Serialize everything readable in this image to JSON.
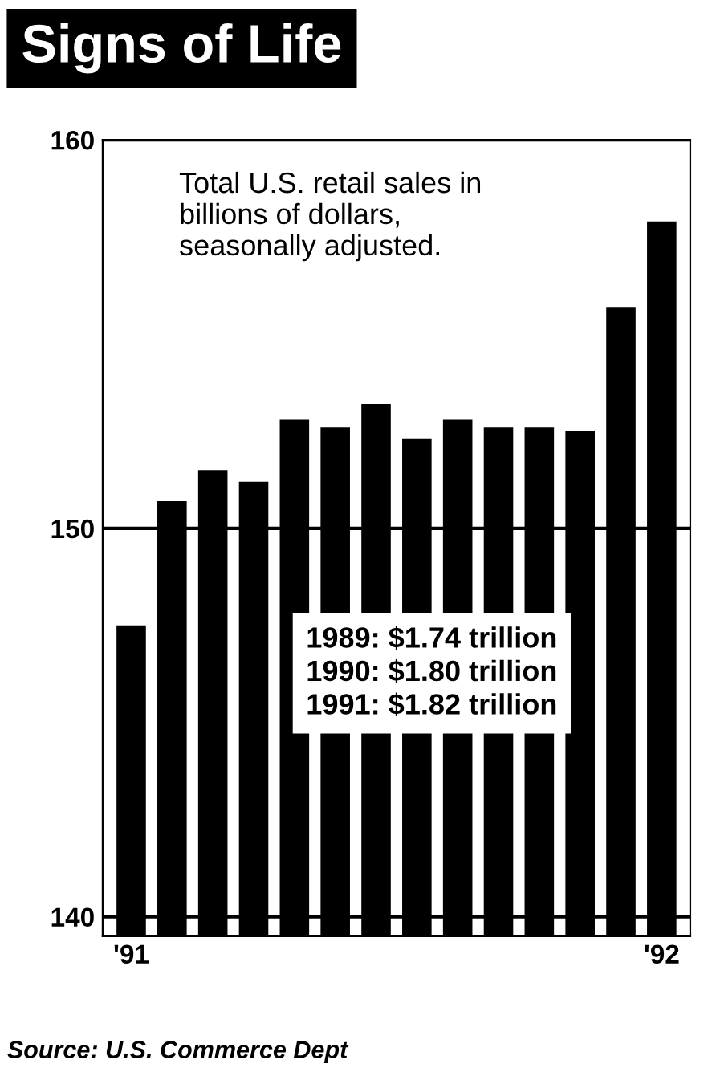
{
  "chart_data": {
    "type": "bar",
    "title": "Signs of Life",
    "subtitle": "Total U.S. retail sales in\nbillions of dollars,\nseasonally adjusted.",
    "categories": [
      "'91",
      null,
      null,
      null,
      null,
      null,
      null,
      null,
      null,
      null,
      null,
      null,
      null,
      "'92"
    ],
    "values": [
      147.5,
      150.7,
      151.5,
      151.2,
      152.8,
      152.6,
      153.2,
      152.3,
      152.8,
      152.6,
      152.6,
      152.5,
      155.7,
      157.9
    ],
    "color": "#000000",
    "ylim": [
      139.5,
      160
    ],
    "yticks": [
      140,
      150,
      160
    ],
    "grid": "y",
    "annotations": [
      "1989: $1.74 trillion\n1990: $1.80 trillion\n1991: $1.82 trillion",
      "Source: U.S. Commerce Dept"
    ]
  }
}
